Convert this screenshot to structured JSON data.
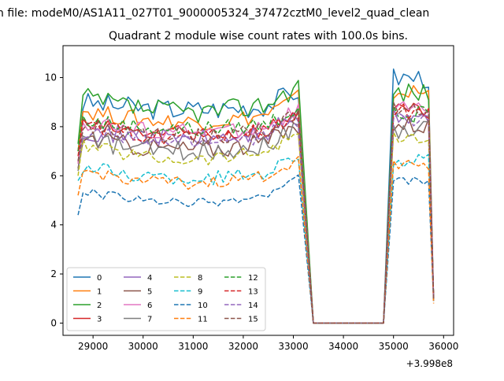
{
  "figure": {
    "suptitle": "n file: modeM0/AS1A11_027T01_9000005324_37472cztM0_level2_quad_clean",
    "title": "Quadrant 2 module wise count rates with 100.0s bins.",
    "x_offset_label": "+3.998e8"
  },
  "chart_data": {
    "type": "line",
    "title": "Quadrant 2 module wise count rates with 100.0s bins.",
    "xlabel": "",
    "ylabel": "",
    "x_offset": 399800000,
    "xlim": [
      28400,
      36200
    ],
    "ylim": [
      -0.5,
      11.3
    ],
    "xticks": [
      29000,
      30000,
      31000,
      32000,
      33000,
      34000,
      35000,
      36000
    ],
    "xtick_labels": [
      "29000",
      "30000",
      "31000",
      "32000",
      "33000",
      "34000",
      "35000",
      "36000"
    ],
    "yticks": [
      0,
      2,
      4,
      6,
      8,
      10
    ],
    "ytick_labels": [
      "0",
      "2",
      "4",
      "6",
      "8",
      "10"
    ],
    "grid": false,
    "legend_position": "lower-left",
    "legend_columns": 4,
    "segments": [
      {
        "x_start": 28700,
        "x_end": 33100,
        "points": 45
      },
      {
        "x_start": 35000,
        "x_end": 35700,
        "points": 8
      }
    ],
    "x_drop_end": 33400,
    "x_gap_end": 34800,
    "x_last": 35800,
    "series": [
      {
        "name": "0",
        "color": "#1f77b4",
        "dashed": false,
        "start": 7.0,
        "level": 9.0,
        "mid_dip": 0.3,
        "noise": 0.45,
        "second_level": 10.0,
        "last": 1.0
      },
      {
        "name": "1",
        "color": "#ff7f0e",
        "dashed": false,
        "start": 7.0,
        "level": 8.7,
        "mid_dip": 0.5,
        "noise": 0.35,
        "second_level": 9.4,
        "last": 0.9
      },
      {
        "name": "2",
        "color": "#2ca02c",
        "dashed": false,
        "start": 7.3,
        "level": 9.2,
        "mid_dip": 0.6,
        "noise": 0.45,
        "second_level": 9.4,
        "last": 1.0
      },
      {
        "name": "3",
        "color": "#d62728",
        "dashed": false,
        "start": 6.5,
        "level": 8.1,
        "mid_dip": 0.4,
        "noise": 0.35,
        "second_level": 8.6,
        "last": 1.0
      },
      {
        "name": "4",
        "color": "#9467bd",
        "dashed": false,
        "start": 6.3,
        "level": 7.9,
        "mid_dip": 0.4,
        "noise": 0.4,
        "second_level": 8.4,
        "last": 1.0
      },
      {
        "name": "5",
        "color": "#8c564b",
        "dashed": false,
        "start": 6.3,
        "level": 7.6,
        "mid_dip": 0.5,
        "noise": 0.4,
        "second_level": 8.1,
        "last": 1.0
      },
      {
        "name": "6",
        "color": "#e377c2",
        "dashed": false,
        "start": 6.5,
        "level": 8.2,
        "mid_dip": 0.4,
        "noise": 0.35,
        "second_level": 8.7,
        "last": 1.0
      },
      {
        "name": "7",
        "color": "#7f7f7f",
        "dashed": false,
        "start": 6.2,
        "level": 7.5,
        "mid_dip": 0.5,
        "noise": 0.4,
        "second_level": 7.9,
        "last": 1.0
      },
      {
        "name": "8",
        "color": "#bcbd22",
        "dashed": true,
        "start": 6.0,
        "level": 7.3,
        "mid_dip": 0.6,
        "noise": 0.3,
        "second_level": 7.5,
        "last": 1.0
      },
      {
        "name": "9",
        "color": "#17becf",
        "dashed": true,
        "start": 5.8,
        "level": 6.4,
        "mid_dip": 0.5,
        "noise": 0.3,
        "second_level": 6.6,
        "last": 0.9
      },
      {
        "name": "10",
        "color": "#1f77b4",
        "dashed": true,
        "start": 4.4,
        "level": 5.4,
        "mid_dip": 0.5,
        "noise": 0.18,
        "second_level": 5.8,
        "last": 0.9
      },
      {
        "name": "11",
        "color": "#ff7f0e",
        "dashed": true,
        "start": 5.2,
        "level": 6.2,
        "mid_dip": 0.5,
        "noise": 0.25,
        "second_level": 6.5,
        "last": 0.8
      },
      {
        "name": "12",
        "color": "#2ca02c",
        "dashed": true,
        "start": 7.0,
        "level": 8.3,
        "mid_dip": 0.4,
        "noise": 0.35,
        "second_level": 8.5,
        "last": 1.0
      },
      {
        "name": "13",
        "color": "#d62728",
        "dashed": true,
        "start": 6.8,
        "level": 8.0,
        "mid_dip": 0.4,
        "noise": 0.35,
        "second_level": 8.6,
        "last": 1.0
      },
      {
        "name": "14",
        "color": "#9467bd",
        "dashed": true,
        "start": 6.6,
        "level": 7.8,
        "mid_dip": 0.4,
        "noise": 0.35,
        "second_level": 8.3,
        "last": 1.0
      },
      {
        "name": "15",
        "color": "#8c564b",
        "dashed": true,
        "start": 6.6,
        "level": 8.0,
        "mid_dip": 0.4,
        "noise": 0.35,
        "second_level": 8.8,
        "last": 1.0
      }
    ]
  }
}
